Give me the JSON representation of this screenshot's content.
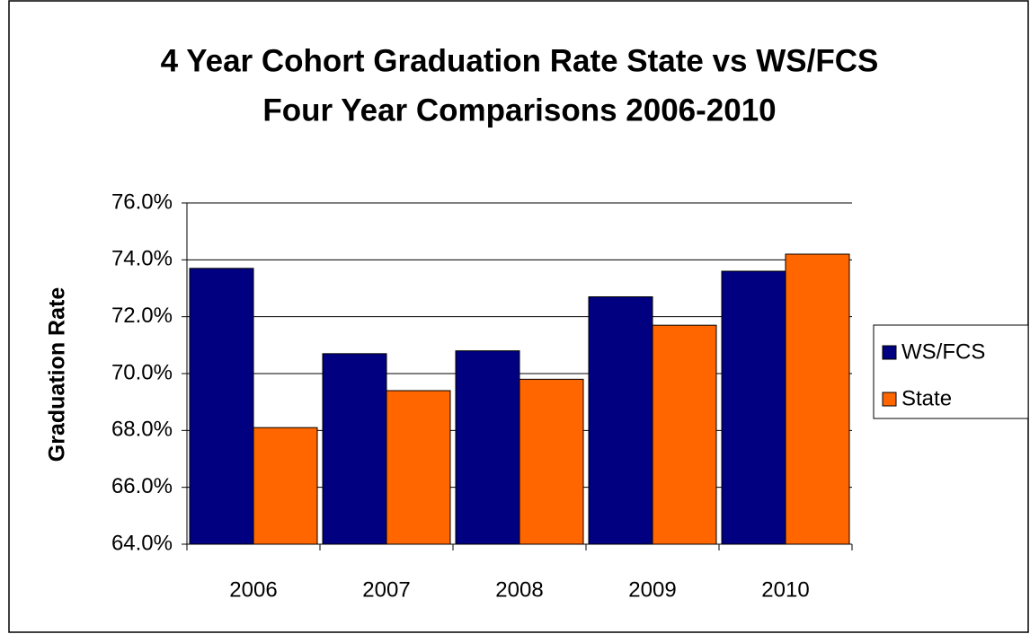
{
  "chart_data": {
    "type": "bar",
    "title": "4 Year Cohort Graduation Rate State vs WS/FCS",
    "subtitle": "Four Year Comparisons 2006-2010",
    "y_label": "Graduation Rate",
    "categories": [
      "2006",
      "2007",
      "2008",
      "2009",
      "2010"
    ],
    "series": [
      {
        "name": "WS/FCS",
        "color": "#000080",
        "values": [
          73.7,
          70.7,
          70.8,
          72.7,
          73.6
        ]
      },
      {
        "name": "State",
        "color": "#ff6600",
        "values": [
          68.1,
          69.4,
          69.8,
          71.7,
          74.2
        ]
      }
    ],
    "ylim": [
      64,
      76
    ],
    "yticks": [
      {
        "value": 64,
        "label": "64.0%"
      },
      {
        "value": 66,
        "label": "66.0%"
      },
      {
        "value": 68,
        "label": "68.0%"
      },
      {
        "value": 70,
        "label": "70.0%"
      },
      {
        "value": 72,
        "label": "72.0%"
      },
      {
        "value": 74,
        "label": "74.0%"
      },
      {
        "value": 76,
        "label": "76.0%"
      }
    ],
    "grid": true,
    "legend": "right"
  }
}
